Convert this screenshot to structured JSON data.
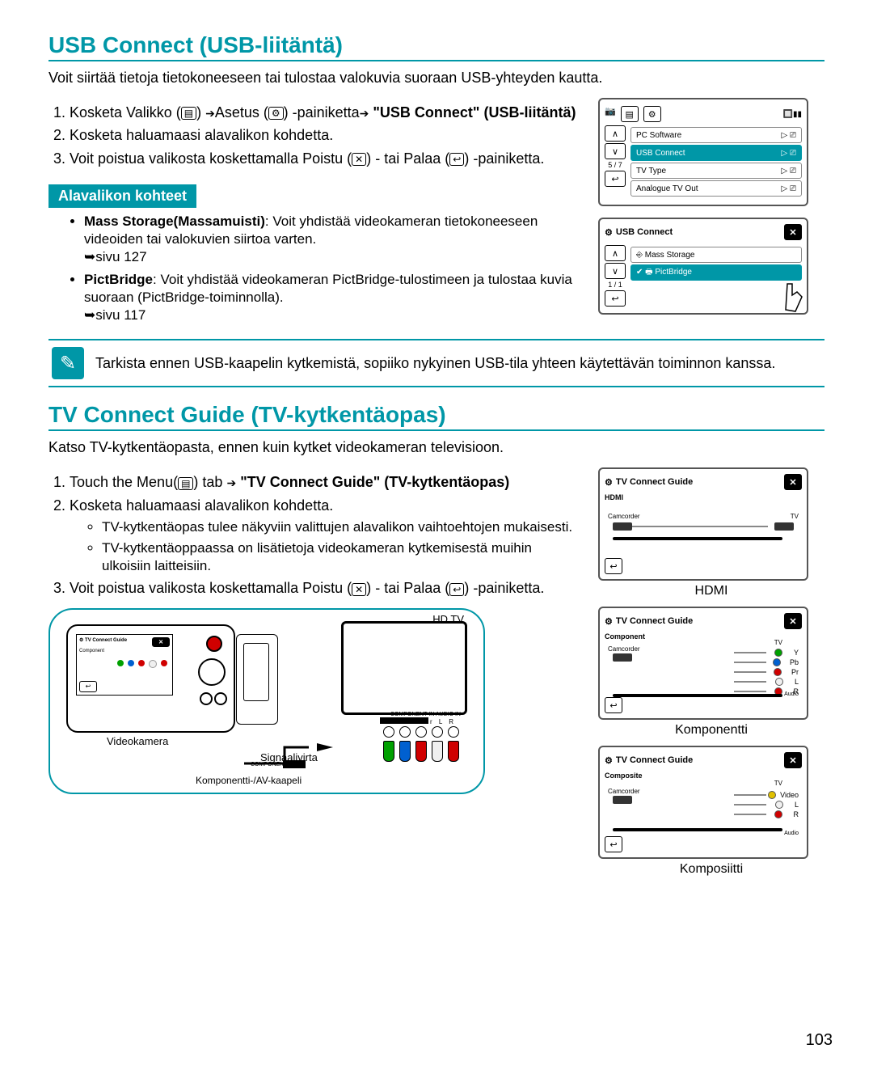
{
  "section1": {
    "title": "USB Connect (USB-liitäntä)",
    "intro": "Voit siirtää tietoja tietokoneeseen tai tulostaa valokuvia suoraan USB-yhteyden kautta.",
    "step1_a": "Kosketa Valikko (",
    "step1_b": ") ",
    "step1_c": "Asetus (",
    "step1_d": ") -painiketta",
    "step1_e": " \"USB Connect\" (USB-liitäntä)",
    "step2": "Kosketa haluamaasi alavalikon kohdetta.",
    "step3_a": "Voit poistua valikosta koskettamalla Poistu (",
    "step3_b": ") - tai Palaa (",
    "step3_c": ") -painiketta.",
    "sub_title": "Alavalikon kohteet",
    "item1_bold": "Mass Storage(Massamuisti)",
    "item1_text": ": Voit yhdistää videokameran tietokoneeseen videoiden tai valokuvien siirtoa varten.",
    "item1_ref": "sivu 127",
    "item2_bold": "PictBridge",
    "item2_text": ": Voit yhdistää videokameran PictBridge-tulostimeen ja tulostaa kuvia suoraan (PictBridge-toiminnolla).",
    "item2_ref": "sivu 117",
    "note": "Tarkista ennen USB-kaapelin kytkemistä, sopiiko nykyinen USB-tila yhteen käytettävän toiminnon kanssa."
  },
  "screen1": {
    "page": "5 / 7",
    "items": [
      "PC Software",
      "USB Connect",
      "TV Type",
      "Analogue TV Out"
    ],
    "selected_index": 1
  },
  "screen2": {
    "title": "USB Connect",
    "page": "1 / 1",
    "items": [
      "Mass Storage",
      "PictBridge"
    ],
    "selected_index": 1
  },
  "section2": {
    "title": "TV Connect Guide (TV-kytkentäopas)",
    "intro": "Katso TV-kytkentäopasta, ennen kuin kytket videokameran televisioon.",
    "step1_a": "Touch the Menu(",
    "step1_b": ") tab ",
    "step1_c": " \"TV Connect Guide\" (TV-kytkentäopas)",
    "step2": "Kosketa haluamaasi alavalikon kohdetta.",
    "step2_sub1": "TV-kytkentäopas tulee näkyviin valittujen alavalikon vaihtoehtojen mukaisesti.",
    "step2_sub2": "TV-kytkentäoppaassa on lisätietoja videokameran kytkemisestä muihin ulkoisiin laitteisiin.",
    "step3_a": "Voit poistua valikosta koskettamalla Poistu (",
    "step3_b": ") - tai Palaa (",
    "step3_c": ") -painiketta."
  },
  "tv_screens": {
    "title": "TV Connect Guide",
    "hdmi": {
      "type": "HDMI",
      "label": "HDMI",
      "camcorder": "Camcorder",
      "tv": "TV"
    },
    "component": {
      "type": "Component",
      "label": "Komponentti",
      "camcorder": "Camcorder",
      "tv": "TV",
      "pins": [
        {
          "label": "Y",
          "color": "#00a000"
        },
        {
          "label": "Pb",
          "color": "#0060d0"
        },
        {
          "label": "Pr",
          "color": "#d00000"
        },
        {
          "label": "L",
          "color": "#f0f0f0"
        },
        {
          "label": "R",
          "color": "#d00000"
        }
      ],
      "audio": "Audio"
    },
    "composite": {
      "type": "Composite",
      "label": "Komposiitti",
      "camcorder": "Camcorder",
      "tv": "TV",
      "pins": [
        {
          "label": "Video",
          "color": "#e0c000"
        },
        {
          "label": "L",
          "color": "#f0f0f0"
        },
        {
          "label": "R",
          "color": "#d00000"
        }
      ],
      "audio": "Audio"
    }
  },
  "illustration": {
    "screen_title": "TV Connect Guide",
    "camcorder_label": "Videokamera",
    "flow_label": "Signaalivirta",
    "hdtv_label": "HD TV",
    "cable_label": "Komponentti-/AV-kaapeli",
    "conn_header": "COMPONENT IN   AUDIO IN",
    "conn_labels": "Y   Pb   Pr   L   R",
    "plug_colors": [
      "#00a000",
      "#0060d0",
      "#d00000",
      "#f0f0f0",
      "#d00000"
    ],
    "component_av": "COMPONENT / AV"
  },
  "page_number": "103",
  "colors": {
    "accent": "#0097a7"
  }
}
